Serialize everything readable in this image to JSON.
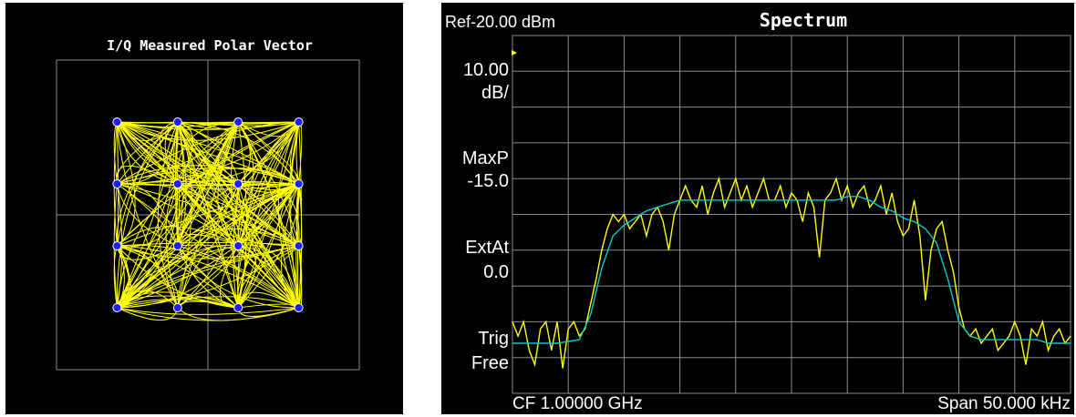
{
  "colors": {
    "background": "#000000",
    "grid": "#8c8c8c",
    "trace_yellow": "#ffff00",
    "trace_cyan": "#00cccc",
    "symbol_blue": "#1e1eff",
    "text": "#ffffff"
  },
  "chart_data": [
    {
      "type": "scatter",
      "title": "I/Q Measured Polar Vector",
      "xlim": [
        -1.5,
        1.5
      ],
      "ylim": [
        -1.5,
        1.5
      ],
      "grid": true,
      "symbols": {
        "x": [
          -0.9,
          -0.3,
          0.3,
          0.9,
          -0.9,
          -0.3,
          0.3,
          0.9,
          -0.9,
          -0.3,
          0.3,
          0.9,
          -0.9,
          -0.3,
          0.3,
          0.9
        ],
        "y": [
          0.9,
          0.9,
          0.9,
          0.9,
          0.3,
          0.3,
          0.3,
          0.3,
          -0.3,
          -0.3,
          -0.3,
          -0.3,
          -0.9,
          -0.9,
          -0.9,
          -0.9
        ]
      },
      "trajectory": {
        "description_count": 260,
        "seed": 7
      }
    },
    {
      "type": "line",
      "title": "Spectrum",
      "ref_label": "Ref-20.00 dBm",
      "scale_label_1": "10.00",
      "scale_label_2": "dB/",
      "detector_label": "MaxP",
      "detector_value": "-15.0",
      "ext_label": "ExtAt",
      "ext_value": "0.0",
      "trig_label": "Trig",
      "trig_value": "Free",
      "cf_label": "CF 1.00000 GHz",
      "span_label": "Span  50.000 kHz",
      "xlim": [
        -25,
        25
      ],
      "ylim": [
        -120,
        -20
      ],
      "grid": true,
      "series": [
        {
          "color": "#00cccc",
          "x": [
            -25,
            -23,
            -21,
            -19,
            -18,
            -17,
            -16,
            -15,
            -14,
            -13,
            -12,
            -11,
            -10,
            -9,
            -8,
            -7,
            -6,
            -5,
            -4,
            -3,
            -2,
            -1,
            0,
            1,
            2,
            3,
            4,
            5,
            6,
            7,
            8,
            9,
            10,
            11,
            12,
            13,
            14,
            15,
            16,
            17,
            18,
            19,
            20,
            21,
            22,
            23,
            25
          ],
          "y": [
            -106,
            -106,
            -106,
            -105,
            -98,
            -85,
            -76,
            -73,
            -71,
            -69,
            -68,
            -67,
            -66,
            -66,
            -66,
            -66,
            -66,
            -66,
            -66,
            -66,
            -66,
            -66,
            -66,
            -66,
            -66,
            -66,
            -66,
            -65,
            -65,
            -66,
            -68,
            -69,
            -71,
            -72,
            -74,
            -78,
            -88,
            -100,
            -104,
            -105,
            -105,
            -105,
            -105,
            -105,
            -105,
            -106,
            -106
          ]
        },
        {
          "color": "#ffff00",
          "x": [
            -25,
            -24.5,
            -24,
            -23.5,
            -23,
            -22.5,
            -22,
            -21.5,
            -21,
            -20.5,
            -20,
            -19.5,
            -19,
            -18.5,
            -18,
            -17.5,
            -17,
            -16.5,
            -16,
            -15.5,
            -15,
            -14.5,
            -14,
            -13.5,
            -13,
            -12.5,
            -12,
            -11.5,
            -11,
            -10.5,
            -10,
            -9.5,
            -9,
            -8.5,
            -8,
            -7.5,
            -7,
            -6.5,
            -6,
            -5.5,
            -5,
            -4.5,
            -4,
            -3.5,
            -3,
            -2.5,
            -2,
            -1.5,
            -1,
            -0.5,
            0,
            0.5,
            1,
            1.5,
            2,
            2.5,
            3,
            3.5,
            4,
            4.5,
            5,
            5.5,
            6,
            6.5,
            7,
            7.5,
            8,
            8.5,
            9,
            9.5,
            10,
            10.5,
            11,
            11.5,
            12,
            12.5,
            13,
            13.5,
            14,
            14.5,
            15,
            15.5,
            16,
            16.5,
            17,
            17.5,
            18,
            18.5,
            19,
            19.5,
            20,
            20.5,
            21,
            21.5,
            22,
            22.5,
            23,
            23.5,
            24,
            24.5,
            25
          ],
          "y": [
            -100,
            -104,
            -100,
            -108,
            -112,
            -102,
            -100,
            -108,
            -100,
            -113,
            -102,
            -100,
            -104,
            -102,
            -95,
            -88,
            -80,
            -74,
            -70,
            -72,
            -70,
            -74,
            -72,
            -70,
            -76,
            -70,
            -68,
            -72,
            -80,
            -70,
            -66,
            -62,
            -66,
            -68,
            -62,
            -70,
            -64,
            -60,
            -68,
            -64,
            -60,
            -66,
            -62,
            -68,
            -64,
            -60,
            -66,
            -66,
            -62,
            -68,
            -64,
            -66,
            -72,
            -64,
            -68,
            -82,
            -66,
            -64,
            -60,
            -66,
            -62,
            -68,
            -64,
            -62,
            -68,
            -66,
            -62,
            -70,
            -64,
            -72,
            -76,
            -74,
            -66,
            -76,
            -94,
            -80,
            -74,
            -72,
            -80,
            -86,
            -96,
            -102,
            -104,
            -102,
            -106,
            -104,
            -102,
            -108,
            -106,
            -104,
            -100,
            -104,
            -112,
            -102,
            -104,
            -100,
            -108,
            -104,
            -102,
            -106,
            -104
          ]
        }
      ]
    }
  ]
}
